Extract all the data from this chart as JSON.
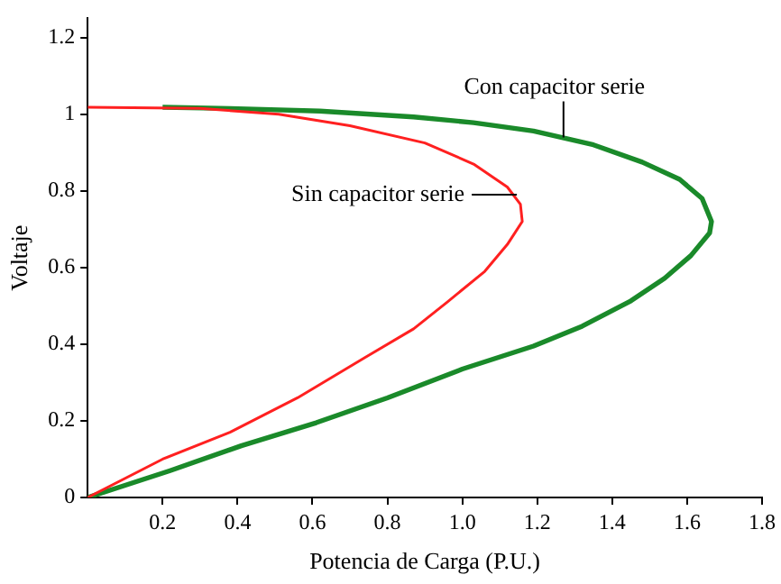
{
  "chart_data": {
    "type": "line",
    "xlabel": "Potencia de Carga (P.U.)",
    "ylabel": "Voltaje",
    "xlim": [
      0,
      1.8
    ],
    "ylim": [
      0,
      1.25
    ],
    "xticks": [
      0.2,
      0.4,
      0.6,
      0.8,
      {
        "value": 1,
        "label": "1.0"
      },
      1.2,
      1.4,
      1.6,
      1.8
    ],
    "yticks": [
      0,
      0.2,
      0.4,
      0.6,
      0.8,
      1,
      1.2
    ],
    "grid": false,
    "legend": false,
    "marker": "none",
    "line_style": "solid",
    "series": [
      {
        "color": "#ff2020",
        "x": [
          0,
          0.2,
          0.38,
          0.56,
          0.74,
          0.87,
          0.96,
          1.06,
          1.12,
          1.16,
          1.155,
          1.12,
          1.03,
          0.9,
          0.7,
          0.51,
          0.3,
          0
        ],
        "values": [
          0,
          0.1,
          0.17,
          0.26,
          0.365,
          0.44,
          0.51,
          0.59,
          0.66,
          0.72,
          0.765,
          0.81,
          0.87,
          0.925,
          0.97,
          1.0,
          1.015,
          1.018
        ]
      },
      {
        "color": "#1a8a2a",
        "x": [
          0,
          0.22,
          0.41,
          0.61,
          0.8,
          1.0,
          1.19,
          1.32,
          1.45,
          1.54,
          1.61,
          1.66,
          1.665,
          1.64,
          1.58,
          1.48,
          1.35,
          1.19,
          1.03,
          0.87,
          0.62,
          0.38,
          0.2
        ],
        "values": [
          0,
          0.07,
          0.135,
          0.195,
          0.26,
          0.335,
          0.395,
          0.447,
          0.513,
          0.572,
          0.631,
          0.69,
          0.72,
          0.78,
          0.83,
          0.875,
          0.92,
          0.956,
          0.978,
          0.993,
          1.008,
          1.015,
          1.018
        ]
      }
    ],
    "annotations": [
      {
        "text": "Con capacitor serie",
        "x": 1.27,
        "y": 0.93
      },
      {
        "text": "Sin capacitor serie",
        "x": 1.16,
        "y": 0.79
      }
    ]
  }
}
